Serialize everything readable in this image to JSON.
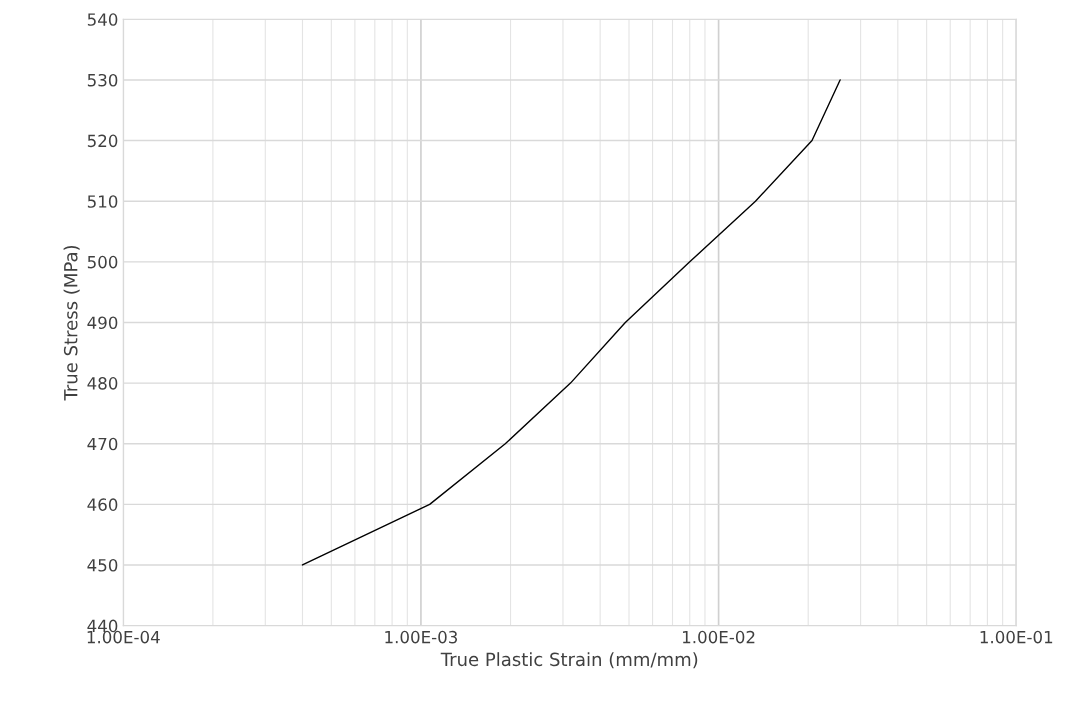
{
  "chart_data": {
    "type": "line",
    "xlabel": "True Plastic Strain (mm/mm)",
    "ylabel": "True Stress (MPa)",
    "x": [
      0.0004,
      0.00107,
      0.00192,
      0.00318,
      0.00486,
      0.008,
      0.0133,
      0.0206,
      0.0256
    ],
    "series": [
      {
        "color": "#000000",
        "values": [
          450,
          460,
          470,
          480,
          490,
          500,
          510,
          520,
          530
        ]
      }
    ],
    "log": "x",
    "xlim": [
      0.0001,
      0.1
    ],
    "xticks": [
      {
        "value": 0.0001,
        "label": "1.00E-04"
      },
      {
        "value": 0.001,
        "label": "1.00E-03"
      },
      {
        "value": 0.01,
        "label": "1.00E-02"
      },
      {
        "value": 0.1,
        "label": "1.00E-01"
      }
    ],
    "ylim": [
      440,
      540
    ],
    "yticks": [
      440,
      450,
      460,
      470,
      480,
      490,
      500,
      510,
      520,
      530,
      540
    ],
    "grid": true,
    "marker": "none",
    "line_style": "solid"
  }
}
